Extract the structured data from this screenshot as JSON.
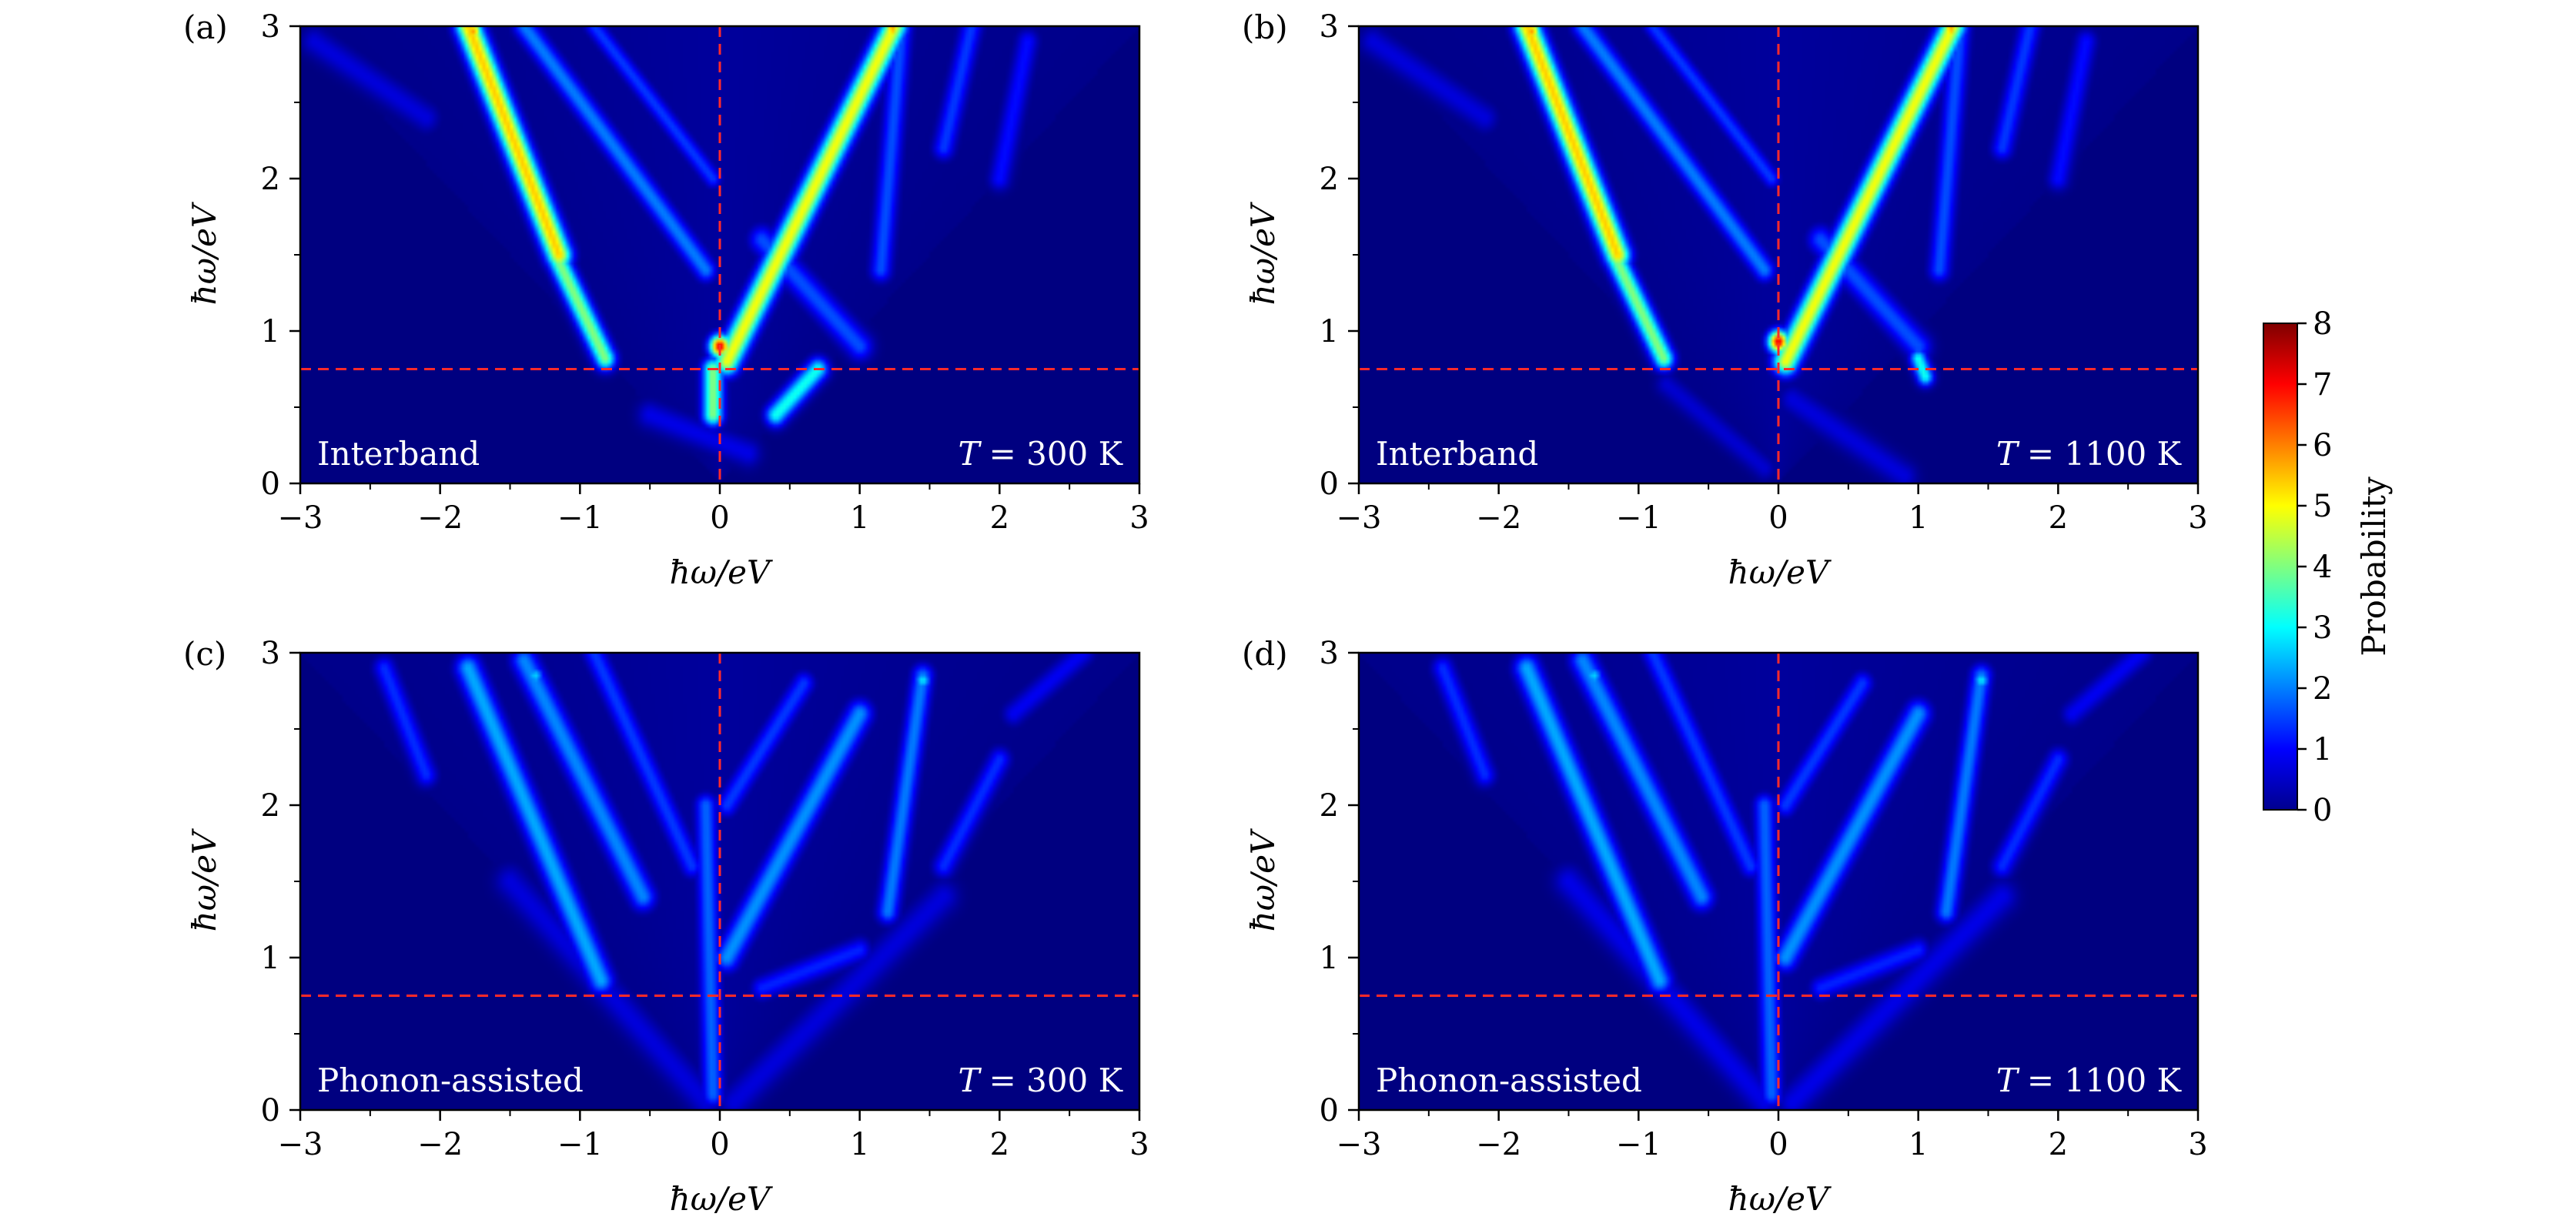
{
  "chart_data": [
    {
      "panel": "(a)",
      "type": "heatmap",
      "xlabel": "ħω/eV",
      "ylabel": "ħω/eV",
      "xlim": [
        -3,
        3
      ],
      "ylim": [
        0,
        3
      ],
      "x_ticks": [
        "−3",
        "−2",
        "−1",
        "0",
        "1",
        "2",
        "3"
      ],
      "y_ticks": [
        "0",
        "1",
        "2",
        "3"
      ],
      "label": "Interband",
      "temperature_symbol": "T",
      "temperature_text": "= 300 K",
      "reference_lines": {
        "x": 0,
        "y": 0.75
      },
      "features": [
        {
          "x0": -1.8,
          "y0": 3.0,
          "x1": -1.15,
          "y1": 1.5,
          "w": 0.06,
          "p": 6.0
        },
        {
          "x0": -1.15,
          "y0": 1.45,
          "x1": -0.82,
          "y1": 0.82,
          "w": 0.05,
          "p": 4.5
        },
        {
          "x0": -1.4,
          "y0": 3.0,
          "x1": -0.1,
          "y1": 1.4,
          "w": 0.05,
          "p": 2.2
        },
        {
          "x0": -0.9,
          "y0": 3.0,
          "x1": -0.05,
          "y1": 2.0,
          "w": 0.04,
          "p": 1.6
        },
        {
          "x0": 0.05,
          "y0": 0.8,
          "x1": 1.25,
          "y1": 3.0,
          "w": 0.06,
          "p": 5.5
        },
        {
          "x0": 0.3,
          "y0": 1.6,
          "x1": 1.0,
          "y1": 0.9,
          "w": 0.06,
          "p": 1.8
        },
        {
          "x0": 1.3,
          "y0": 3.0,
          "x1": 1.15,
          "y1": 1.4,
          "w": 0.05,
          "p": 1.8
        },
        {
          "x0": 1.8,
          "y0": 3.0,
          "x1": 1.6,
          "y1": 2.2,
          "w": 0.05,
          "p": 1.6
        },
        {
          "x0": 2.2,
          "y0": 2.9,
          "x1": 2.0,
          "y1": 2.0,
          "w": 0.05,
          "p": 1.2
        },
        {
          "x0": -0.05,
          "y0": 0.75,
          "x1": -0.05,
          "y1": 0.45,
          "w": 0.05,
          "p": 4.5
        },
        {
          "x0": 0.4,
          "y0": 0.45,
          "x1": 0.7,
          "y1": 0.75,
          "w": 0.05,
          "p": 3.5
        },
        {
          "x0": -0.5,
          "y0": 0.45,
          "x1": 0.2,
          "y1": 0.2,
          "w": 0.06,
          "p": 0.9
        },
        {
          "x0": -2.9,
          "y0": 2.9,
          "x1": -2.1,
          "y1": 2.4,
          "w": 0.06,
          "p": 0.8
        },
        {
          "x0": 0.0,
          "y0": 0.9,
          "x1": 0.0,
          "y1": 0.9,
          "w": 0.05,
          "p": 8.0
        },
        {
          "x0": -1.76,
          "y0": 2.97,
          "x1": -1.76,
          "y1": 2.97,
          "w": 0.04,
          "p": 6.5
        },
        {
          "x0": 1.23,
          "y0": 2.98,
          "x1": 1.23,
          "y1": 2.98,
          "w": 0.04,
          "p": 6.5
        }
      ]
    },
    {
      "panel": "(b)",
      "type": "heatmap",
      "xlabel": "ħω/eV",
      "ylabel": "ħω/eV",
      "xlim": [
        -3,
        3
      ],
      "ylim": [
        0,
        3
      ],
      "x_ticks": [
        "−3",
        "−2",
        "−1",
        "0",
        "1",
        "2",
        "3"
      ],
      "y_ticks": [
        "0",
        "1",
        "2",
        "3"
      ],
      "label": "Interband",
      "temperature_symbol": "T",
      "temperature_text": "= 1100 K",
      "reference_lines": {
        "x": 0,
        "y": 0.75
      },
      "features": [
        {
          "x0": -1.8,
          "y0": 3.0,
          "x1": -1.15,
          "y1": 1.5,
          "w": 0.06,
          "p": 6.0
        },
        {
          "x0": -1.15,
          "y0": 1.45,
          "x1": -0.82,
          "y1": 0.82,
          "w": 0.05,
          "p": 4.5
        },
        {
          "x0": -1.4,
          "y0": 3.0,
          "x1": -0.1,
          "y1": 1.4,
          "w": 0.05,
          "p": 2.2
        },
        {
          "x0": -0.9,
          "y0": 3.0,
          "x1": -0.05,
          "y1": 2.0,
          "w": 0.04,
          "p": 1.6
        },
        {
          "x0": 0.05,
          "y0": 0.8,
          "x1": 1.25,
          "y1": 3.0,
          "w": 0.06,
          "p": 5.5
        },
        {
          "x0": 0.3,
          "y0": 1.6,
          "x1": 1.0,
          "y1": 0.9,
          "w": 0.06,
          "p": 1.8
        },
        {
          "x0": 1.3,
          "y0": 3.0,
          "x1": 1.15,
          "y1": 1.4,
          "w": 0.05,
          "p": 1.8
        },
        {
          "x0": 1.8,
          "y0": 3.0,
          "x1": 1.6,
          "y1": 2.2,
          "w": 0.05,
          "p": 1.6
        },
        {
          "x0": 2.2,
          "y0": 2.9,
          "x1": 2.0,
          "y1": 2.0,
          "w": 0.05,
          "p": 1.2
        },
        {
          "x0": 1.0,
          "y0": 0.82,
          "x1": 1.05,
          "y1": 0.7,
          "w": 0.04,
          "p": 3.5
        },
        {
          "x0": -0.8,
          "y0": 0.65,
          "x1": -0.1,
          "y1": 0.1,
          "w": 0.05,
          "p": 0.7
        },
        {
          "x0": 0.1,
          "y0": 0.55,
          "x1": 0.9,
          "y1": 0.05,
          "w": 0.06,
          "p": 0.8
        },
        {
          "x0": -2.9,
          "y0": 2.9,
          "x1": -2.1,
          "y1": 2.4,
          "w": 0.06,
          "p": 0.8
        },
        {
          "x0": 0.0,
          "y0": 0.93,
          "x1": 0.0,
          "y1": 0.93,
          "w": 0.05,
          "p": 8.0
        },
        {
          "x0": -1.76,
          "y0": 2.97,
          "x1": -1.76,
          "y1": 2.97,
          "w": 0.04,
          "p": 6.5
        },
        {
          "x0": 1.23,
          "y0": 2.98,
          "x1": 1.23,
          "y1": 2.98,
          "w": 0.04,
          "p": 6.5
        }
      ]
    },
    {
      "panel": "(c)",
      "type": "heatmap",
      "xlabel": "ħω/eV",
      "ylabel": "ħω/eV",
      "xlim": [
        -3,
        3
      ],
      "ylim": [
        0,
        3
      ],
      "x_ticks": [
        "−3",
        "−2",
        "−1",
        "0",
        "1",
        "2",
        "3"
      ],
      "y_ticks": [
        "0",
        "1",
        "2",
        "3"
      ],
      "label": "Phonon-assisted",
      "temperature_symbol": "T",
      "temperature_text": "= 300 K",
      "reference_lines": {
        "x": 0,
        "y": 0.75
      },
      "features": [
        {
          "x0": -1.8,
          "y0": 2.9,
          "x1": -0.85,
          "y1": 0.85,
          "w": 0.06,
          "p": 2.6
        },
        {
          "x0": -1.4,
          "y0": 2.95,
          "x1": -0.55,
          "y1": 1.4,
          "w": 0.06,
          "p": 2.3
        },
        {
          "x0": -0.9,
          "y0": 3.0,
          "x1": -0.2,
          "y1": 1.6,
          "w": 0.05,
          "p": 1.6
        },
        {
          "x0": -2.4,
          "y0": 2.9,
          "x1": -2.1,
          "y1": 2.2,
          "w": 0.05,
          "p": 1.5
        },
        {
          "x0": -0.1,
          "y0": 2.0,
          "x1": -0.05,
          "y1": 0.1,
          "w": 0.05,
          "p": 2.0
        },
        {
          "x0": 0.05,
          "y0": 1.0,
          "x1": 1.0,
          "y1": 2.6,
          "w": 0.06,
          "p": 2.4
        },
        {
          "x0": 0.05,
          "y0": 2.0,
          "x1": 0.6,
          "y1": 2.8,
          "w": 0.05,
          "p": 1.6
        },
        {
          "x0": 1.45,
          "y0": 2.85,
          "x1": 1.2,
          "y1": 1.3,
          "w": 0.05,
          "p": 2.2
        },
        {
          "x0": 1.6,
          "y0": 1.6,
          "x1": 2.0,
          "y1": 2.3,
          "w": 0.05,
          "p": 1.5
        },
        {
          "x0": 2.1,
          "y0": 2.6,
          "x1": 2.6,
          "y1": 3.0,
          "w": 0.05,
          "p": 1.0
        },
        {
          "x0": 0.3,
          "y0": 0.8,
          "x1": 1.0,
          "y1": 1.05,
          "w": 0.05,
          "p": 1.4
        },
        {
          "x0": -1.5,
          "y0": 1.5,
          "x1": -0.1,
          "y1": 0.05,
          "w": 0.07,
          "p": 0.8
        },
        {
          "x0": 0.1,
          "y0": 0.05,
          "x1": 1.6,
          "y1": 1.4,
          "w": 0.07,
          "p": 0.8
        },
        {
          "x0": 1.45,
          "y0": 2.82,
          "x1": 1.45,
          "y1": 2.82,
          "w": 0.04,
          "p": 3.2
        },
        {
          "x0": -1.32,
          "y0": 2.85,
          "x1": -1.32,
          "y1": 2.85,
          "w": 0.04,
          "p": 3.0
        }
      ]
    },
    {
      "panel": "(d)",
      "type": "heatmap",
      "xlabel": "ħω/eV",
      "ylabel": "ħω/eV",
      "xlim": [
        -3,
        3
      ],
      "ylim": [
        0,
        3
      ],
      "x_ticks": [
        "−3",
        "−2",
        "−1",
        "0",
        "1",
        "2",
        "3"
      ],
      "y_ticks": [
        "0",
        "1",
        "2",
        "3"
      ],
      "label": "Phonon-assisted",
      "temperature_symbol": "T",
      "temperature_text": "= 1100 K",
      "reference_lines": {
        "x": 0,
        "y": 0.75
      },
      "features": [
        {
          "x0": -1.8,
          "y0": 2.9,
          "x1": -0.85,
          "y1": 0.85,
          "w": 0.06,
          "p": 2.6
        },
        {
          "x0": -1.4,
          "y0": 2.95,
          "x1": -0.55,
          "y1": 1.4,
          "w": 0.06,
          "p": 2.3
        },
        {
          "x0": -0.9,
          "y0": 3.0,
          "x1": -0.2,
          "y1": 1.6,
          "w": 0.05,
          "p": 1.6
        },
        {
          "x0": -2.4,
          "y0": 2.9,
          "x1": -2.1,
          "y1": 2.2,
          "w": 0.05,
          "p": 1.5
        },
        {
          "x0": -0.1,
          "y0": 2.0,
          "x1": -0.05,
          "y1": 0.1,
          "w": 0.05,
          "p": 2.0
        },
        {
          "x0": 0.05,
          "y0": 1.0,
          "x1": 1.0,
          "y1": 2.6,
          "w": 0.06,
          "p": 2.4
        },
        {
          "x0": 0.05,
          "y0": 2.0,
          "x1": 0.6,
          "y1": 2.8,
          "w": 0.05,
          "p": 1.6
        },
        {
          "x0": 1.45,
          "y0": 2.85,
          "x1": 1.2,
          "y1": 1.3,
          "w": 0.05,
          "p": 2.2
        },
        {
          "x0": 1.6,
          "y0": 1.6,
          "x1": 2.0,
          "y1": 2.3,
          "w": 0.05,
          "p": 1.5
        },
        {
          "x0": 2.1,
          "y0": 2.6,
          "x1": 2.6,
          "y1": 3.0,
          "w": 0.05,
          "p": 1.0
        },
        {
          "x0": 0.3,
          "y0": 0.8,
          "x1": 1.0,
          "y1": 1.05,
          "w": 0.05,
          "p": 1.4
        },
        {
          "x0": -1.5,
          "y0": 1.5,
          "x1": -0.1,
          "y1": 0.05,
          "w": 0.07,
          "p": 0.9
        },
        {
          "x0": 0.1,
          "y0": 0.05,
          "x1": 1.6,
          "y1": 1.4,
          "w": 0.07,
          "p": 0.9
        },
        {
          "x0": 1.45,
          "y0": 2.82,
          "x1": 1.45,
          "y1": 2.82,
          "w": 0.04,
          "p": 3.2
        },
        {
          "x0": -1.32,
          "y0": 2.85,
          "x1": -1.32,
          "y1": 2.85,
          "w": 0.04,
          "p": 3.0
        }
      ]
    }
  ],
  "colorbar": {
    "label": "Probability",
    "range": [
      0,
      8
    ],
    "ticks": [
      "0",
      "1",
      "2",
      "3",
      "4",
      "5",
      "6",
      "7",
      "8"
    ],
    "colormap": "jet"
  },
  "colors": {
    "background": "#00008f",
    "reference_line": "#ff2a2a",
    "annotation_text": "#ffffff"
  }
}
